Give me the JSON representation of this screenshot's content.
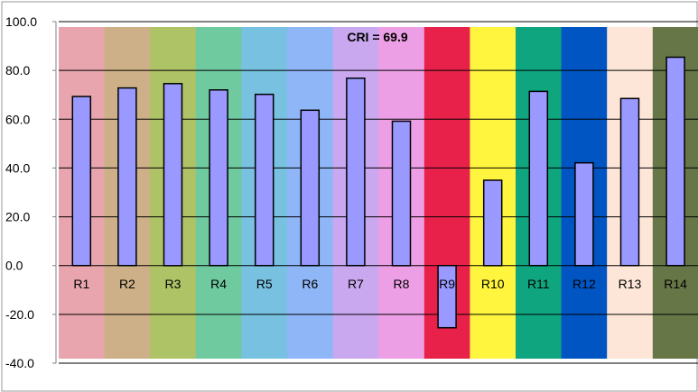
{
  "chart_data": {
    "type": "bar",
    "annotation": "CRI = 69.9",
    "categories": [
      "R1",
      "R2",
      "R3",
      "R4",
      "R5",
      "R6",
      "R7",
      "R8",
      "R9",
      "R10",
      "R11",
      "R12",
      "R13",
      "R14"
    ],
    "values": [
      69.3,
      72.8,
      74.6,
      72.0,
      70.2,
      63.7,
      76.8,
      59.2,
      -25.5,
      35.0,
      71.4,
      42.1,
      68.5,
      85.4
    ],
    "ylim": [
      -40,
      100
    ],
    "yticks": [
      -40,
      -20,
      0,
      20,
      40,
      60,
      80,
      100
    ],
    "ytick_labels": [
      "-40.0",
      "-20.0",
      "0.0",
      "20.0",
      "40.0",
      "60.0",
      "80.0",
      "100.0"
    ],
    "grid": true,
    "legend": "none",
    "bar_color": "#9999ff",
    "background_colors": [
      "#e8a5ad",
      "#cdb087",
      "#aec266",
      "#6fcaa0",
      "#78c1e0",
      "#8fb6f6",
      "#c9a8ef",
      "#ed9fe6",
      "#e8214a",
      "#fff53f",
      "#0fa57f",
      "#0155c2",
      "#fde6d8",
      "#667647"
    ]
  }
}
